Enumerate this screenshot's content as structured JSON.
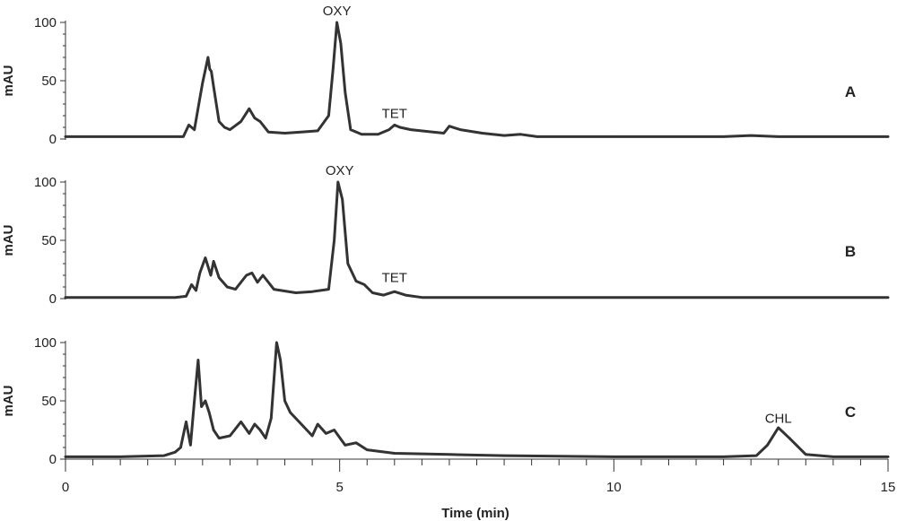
{
  "chart_data": {
    "type": "line",
    "xlabel": "Time (min)",
    "xlim": [
      0,
      15
    ],
    "x_ticks": [
      0,
      5,
      10,
      15
    ],
    "x_tick_labels": [
      "0",
      "5",
      "10",
      "15"
    ],
    "line_color": "#333333",
    "grid": false,
    "panels": [
      {
        "letter": "A",
        "ylabel": "mAU",
        "ylim": [
          0,
          100
        ],
        "y_ticks": [
          0,
          50,
          100
        ],
        "y_tick_labels": [
          "0",
          "50",
          "100"
        ],
        "annotations": [
          {
            "text": "OXY",
            "x": 4.95,
            "y": 100
          },
          {
            "text": "TET",
            "x": 6.0,
            "y": 12
          }
        ],
        "series": [
          {
            "x": [
              0,
              1,
              2,
              2.15,
              2.25,
              2.35,
              2.45,
              2.5,
              2.6,
              2.63,
              2.66,
              2.7,
              2.8,
              2.9,
              3.0,
              3.2,
              3.35,
              3.45,
              3.55,
              3.6,
              3.7,
              4.0,
              4.3,
              4.6,
              4.8,
              4.88,
              4.95,
              5.02,
              5.1,
              5.2,
              5.4,
              5.7,
              5.9,
              6.0,
              6.1,
              6.3,
              6.7,
              6.9,
              7.0,
              7.2,
              7.6,
              8.0,
              8.3,
              8.6,
              10,
              12,
              12.5,
              13,
              15
            ],
            "y": [
              2,
              2,
              2,
              2,
              12,
              8,
              35,
              48,
              70,
              60,
              58,
              45,
              15,
              10,
              8,
              15,
              26,
              18,
              15,
              12,
              6,
              5,
              6,
              7,
              20,
              60,
              100,
              82,
              40,
              8,
              4,
              4,
              8,
              12,
              10,
              8,
              6,
              5,
              11,
              8,
              5,
              3,
              4,
              2,
              2,
              2,
              3,
              2,
              2
            ]
          }
        ]
      },
      {
        "letter": "B",
        "ylabel": "mAU",
        "ylim": [
          0,
          100
        ],
        "y_ticks": [
          0,
          50,
          100
        ],
        "y_tick_labels": [
          "0",
          "50",
          "100"
        ],
        "annotations": [
          {
            "text": "OXY",
            "x": 5.0,
            "y": 100
          },
          {
            "text": "TET",
            "x": 6.0,
            "y": 8
          }
        ],
        "series": [
          {
            "x": [
              0,
              1,
              2,
              2.2,
              2.3,
              2.38,
              2.45,
              2.55,
              2.65,
              2.7,
              2.8,
              2.95,
              3.1,
              3.3,
              3.4,
              3.5,
              3.6,
              3.8,
              4.2,
              4.5,
              4.8,
              4.9,
              4.97,
              5.05,
              5.15,
              5.3,
              5.45,
              5.6,
              5.8,
              6.0,
              6.2,
              6.5,
              8,
              10,
              15
            ],
            "y": [
              1,
              1,
              1,
              2,
              12,
              7,
              22,
              35,
              20,
              32,
              18,
              10,
              8,
              20,
              22,
              14,
              20,
              8,
              5,
              6,
              8,
              50,
              100,
              85,
              30,
              15,
              12,
              5,
              3,
              6,
              3,
              1,
              1,
              1,
              1
            ]
          }
        ]
      },
      {
        "letter": "C",
        "ylabel": "mAU",
        "ylim": [
          0,
          100
        ],
        "y_ticks": [
          0,
          50,
          100
        ],
        "y_tick_labels": [
          "0",
          "50",
          "100"
        ],
        "annotations": [
          {
            "text": "CHL",
            "x": 13.0,
            "y": 25
          }
        ],
        "series": [
          {
            "x": [
              0,
              1,
              1.8,
              2.0,
              2.1,
              2.2,
              2.28,
              2.35,
              2.42,
              2.48,
              2.55,
              2.62,
              2.7,
              2.8,
              3.0,
              3.2,
              3.35,
              3.45,
              3.55,
              3.65,
              3.75,
              3.85,
              3.92,
              4.0,
              4.1,
              4.3,
              4.5,
              4.6,
              4.75,
              4.9,
              5.1,
              5.3,
              5.5,
              6,
              7,
              8,
              10,
              12,
              12.6,
              12.8,
              13.0,
              13.2,
              13.5,
              14,
              15
            ],
            "y": [
              2,
              2,
              3,
              6,
              10,
              32,
              12,
              50,
              85,
              45,
              50,
              40,
              25,
              18,
              20,
              32,
              22,
              30,
              25,
              18,
              35,
              100,
              85,
              50,
              40,
              30,
              20,
              30,
              22,
              25,
              12,
              14,
              8,
              5,
              4,
              3,
              2,
              2,
              3,
              12,
              27,
              18,
              4,
              2,
              2
            ]
          }
        ]
      }
    ]
  }
}
